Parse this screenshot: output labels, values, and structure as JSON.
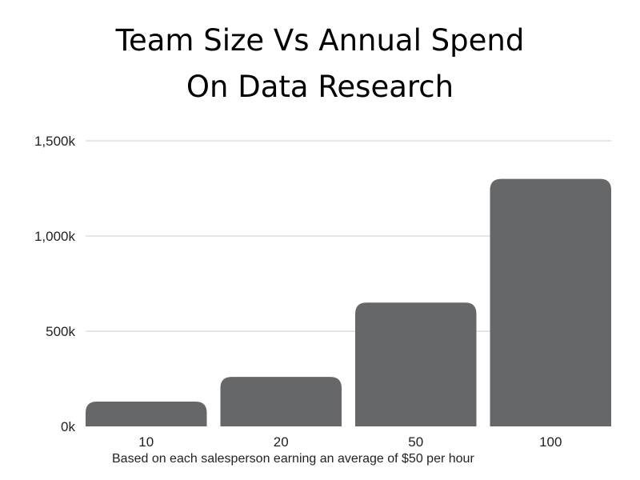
{
  "chart_data": {
    "type": "bar",
    "title_line1": "Team Size Vs Annual Spend",
    "title_line2": "On Data Research",
    "categories": [
      "10",
      "20",
      "50",
      "100"
    ],
    "values": [
      130,
      260,
      650,
      1300
    ],
    "y_ticks": [
      {
        "value": 0,
        "label": "0k"
      },
      {
        "value": 500,
        "label": "500k"
      },
      {
        "value": 1000,
        "label": "1,000k"
      },
      {
        "value": 1500,
        "label": "1,500k"
      }
    ],
    "ylim": [
      0,
      1500
    ],
    "grid": true,
    "bar_color": "#666768",
    "grid_color": "#cccccc",
    "caption": "Based on each salesperson earning an average of $50 per hour"
  }
}
